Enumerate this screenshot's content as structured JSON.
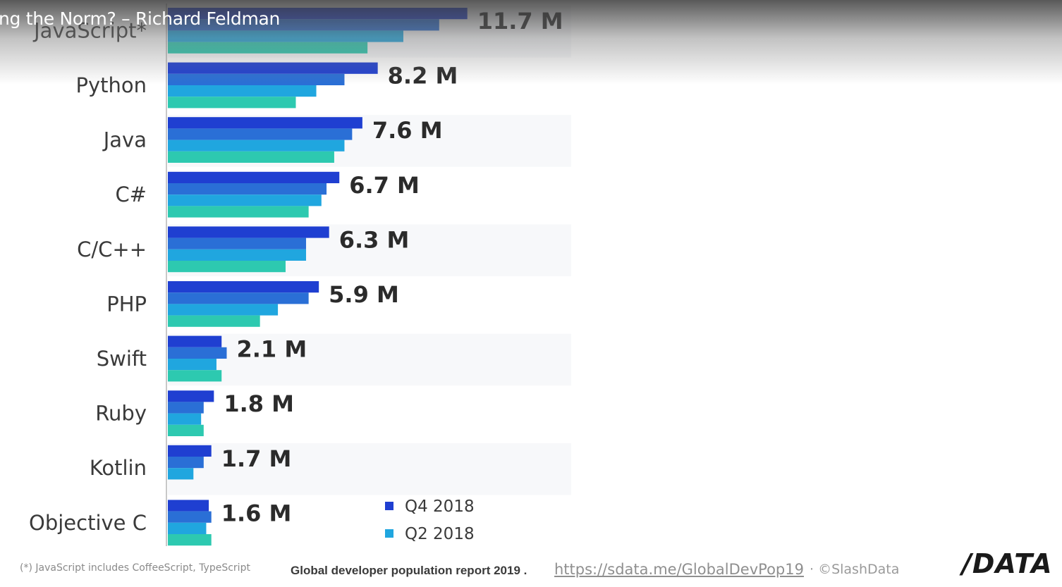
{
  "video": {
    "title": "ng the Norm? – Richard Feldman"
  },
  "chart_data": {
    "type": "bar",
    "orientation": "horizontal",
    "categories": [
      "JavaScript*",
      "Python",
      "Java",
      "C#",
      "C/C++",
      "PHP",
      "Swift",
      "Ruby",
      "Kotlin",
      "Objective C"
    ],
    "value_labels": [
      "11.7 M",
      "8.2 M",
      "7.6 M",
      "6.7 M",
      "6.3 M",
      "5.9 M",
      "2.1 M",
      "1.8 M",
      "1.7 M",
      "1.6 M"
    ],
    "series": [
      {
        "name": "Q4 2018",
        "color": "#1f3fd1",
        "values": [
          11.7,
          8.2,
          7.6,
          6.7,
          6.3,
          5.9,
          2.1,
          1.8,
          1.7,
          1.6
        ]
      },
      {
        "name": "",
        "color": "#2a6fd6",
        "values": [
          10.6,
          6.9,
          7.2,
          6.2,
          5.4,
          5.5,
          2.3,
          1.4,
          1.4,
          1.7
        ]
      },
      {
        "name": "Q2 2018",
        "color": "#20a6df",
        "values": [
          9.2,
          5.8,
          6.9,
          6.0,
          5.4,
          4.3,
          1.9,
          1.3,
          1.0,
          1.5
        ]
      },
      {
        "name": "",
        "color": "#2dc9b0",
        "values": [
          7.8,
          5.0,
          6.5,
          5.5,
          4.6,
          3.6,
          2.1,
          1.4,
          0.0,
          1.7
        ]
      }
    ],
    "xlim": [
      0,
      12.5
    ],
    "legend_position": "bottom-right",
    "grid": false
  },
  "footer": {
    "footnote": "(*) JavaScript includes CoffeeScript, TypeScript",
    "report": "Global developer population report 2019 .",
    "link": "https://sdata.me/GlobalDevPop19",
    "copyright": "· ©SlashData",
    "logo": "/DATA"
  }
}
